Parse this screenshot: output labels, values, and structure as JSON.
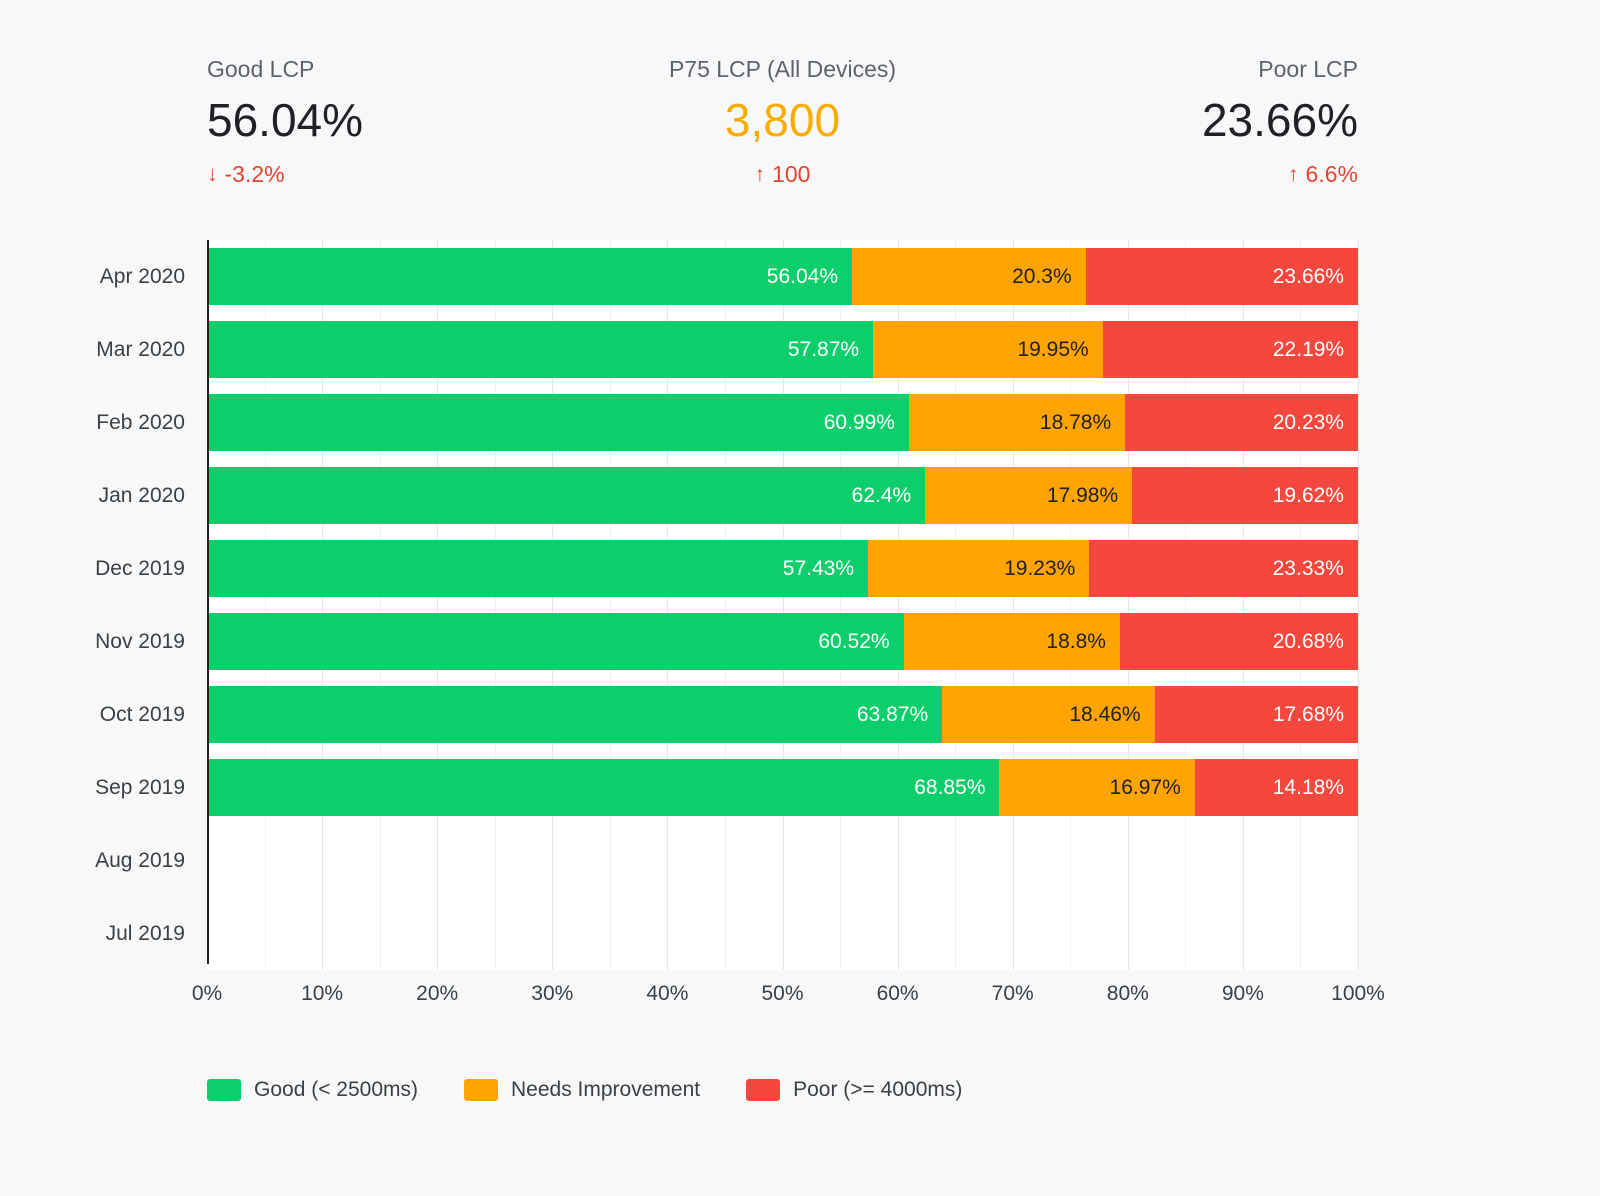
{
  "kpis": {
    "good": {
      "label": "Good LCP",
      "value": "56.04%",
      "delta": "-3.2%",
      "direction": "down"
    },
    "p75": {
      "label": "P75 LCP (All Devices)",
      "value": "3,800",
      "delta": "100",
      "direction": "up"
    },
    "poor": {
      "label": "Poor LCP",
      "value": "23.66%",
      "delta": "6.6%",
      "direction": "up"
    }
  },
  "colors": {
    "good": "#0cce6b",
    "needs_improvement": "#ffa400",
    "poor": "#f4473e",
    "delta": "#e8432e",
    "p75_value": "#f9ab00"
  },
  "chart_data": {
    "type": "bar",
    "orientation": "horizontal",
    "stacked": true,
    "title": "",
    "xlabel": "",
    "ylabel": "",
    "xlim": [
      0,
      100
    ],
    "grid": true,
    "legend_position": "bottom",
    "categories": [
      "Apr 2020",
      "Mar 2020",
      "Feb 2020",
      "Jan 2020",
      "Dec 2019",
      "Nov 2019",
      "Oct 2019",
      "Sep 2019",
      "Aug 2019",
      "Jul 2019"
    ],
    "series": [
      {
        "name": "Good (< 2500ms)",
        "color_key": "good",
        "values": [
          56.04,
          57.87,
          60.99,
          62.4,
          57.43,
          60.52,
          63.87,
          68.85,
          null,
          null
        ]
      },
      {
        "name": "Needs Improvement",
        "color_key": "needs_improvement",
        "values": [
          20.3,
          19.95,
          18.78,
          17.98,
          19.23,
          18.8,
          18.46,
          16.97,
          null,
          null
        ]
      },
      {
        "name": "Poor (>= 4000ms)",
        "color_key": "poor",
        "values": [
          23.66,
          22.19,
          20.23,
          19.62,
          23.33,
          20.68,
          17.68,
          14.18,
          null,
          null
        ]
      }
    ],
    "x_ticks": [
      "0%",
      "10%",
      "20%",
      "30%",
      "40%",
      "50%",
      "60%",
      "70%",
      "80%",
      "90%",
      "100%"
    ]
  }
}
